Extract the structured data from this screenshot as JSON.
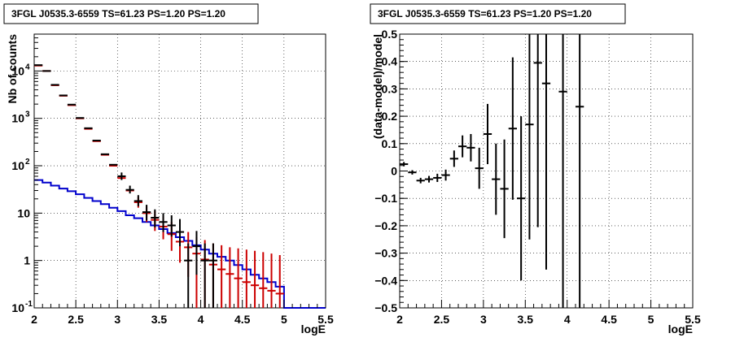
{
  "chart_data": [
    {
      "type": "line",
      "title": "3FGL J0535.3-6559 TS=61.23 PS=1.20 PS=1.20",
      "xlabel": "logE",
      "ylabel": "Nb of counts",
      "xlim": [
        2,
        5.5
      ],
      "ylim": [
        0.1,
        60000
      ],
      "log_y": true,
      "grid": true,
      "x_ticks": [
        "2",
        "2.5",
        "3",
        "3.5",
        "4",
        "4.5",
        "5",
        "5.5"
      ],
      "y_ticks": [
        {
          "value": 0.1,
          "label": "10",
          "exp": "-1"
        },
        {
          "value": 1,
          "label": "1",
          "exp": ""
        },
        {
          "value": 10,
          "label": "10",
          "exp": ""
        },
        {
          "value": 100,
          "label": "10",
          "exp": "2"
        },
        {
          "value": 1000,
          "label": "10",
          "exp": "3"
        },
        {
          "value": 10000,
          "label": "10",
          "exp": "4"
        }
      ],
      "bin_width": 0.1,
      "series": [
        {
          "color": "#0000cc",
          "style": "step",
          "x": [
            2.05,
            2.15,
            2.25,
            2.35,
            2.45,
            2.55,
            2.65,
            2.75,
            2.85,
            2.95,
            3.05,
            3.15,
            3.25,
            3.35,
            3.45,
            3.55,
            3.65,
            3.75,
            3.85,
            3.95,
            4.05,
            4.15,
            4.25,
            4.35,
            4.45,
            4.55,
            4.65,
            4.75,
            4.85,
            4.95,
            5.05,
            5.15,
            5.25,
            5.35,
            5.45
          ],
          "y": [
            50,
            44,
            38,
            33,
            29,
            25,
            21,
            18,
            15.5,
            13,
            11,
            9,
            7.8,
            6.5,
            5.5,
            4.6,
            3.8,
            3.1,
            2.6,
            2.1,
            1.7,
            1.4,
            1.2,
            1.0,
            0.8,
            0.65,
            0.5,
            0.42,
            0.35,
            0.28,
            0.1,
            0.1,
            0.1,
            0.1,
            0.1
          ]
        },
        {
          "color": "#cc0000",
          "style": "errorbar",
          "x": [
            2.05,
            2.15,
            2.25,
            2.35,
            2.45,
            2.55,
            2.65,
            2.75,
            2.85,
            2.95,
            3.05,
            3.15,
            3.25,
            3.35,
            3.45,
            3.55,
            3.65,
            3.75,
            3.85,
            3.95,
            4.05,
            4.15,
            4.25,
            4.35,
            4.45,
            4.55,
            4.65,
            4.75,
            4.85,
            4.95
          ],
          "y": [
            13000,
            10000,
            5000,
            3000,
            1900,
            1000,
            600,
            330,
            170,
            100,
            55,
            30,
            17,
            10,
            7.2,
            5.2,
            3.6,
            2.5,
            1.9,
            1.4,
            1.05,
            0.82,
            0.65,
            0.52,
            0.42,
            0.35,
            0.3,
            0.26,
            0.23,
            0.2
          ],
          "y_low": [
            null,
            null,
            null,
            null,
            null,
            null,
            null,
            null,
            null,
            null,
            null,
            null,
            13,
            6.5,
            4.2,
            2.8,
            1.6,
            0.9,
            0.45,
            0.1,
            0.1,
            0.1,
            0.1,
            0.1,
            0.1,
            0.1,
            0.1,
            0.1,
            0.1,
            0.1
          ],
          "y_high": [
            null,
            null,
            null,
            null,
            null,
            null,
            null,
            null,
            null,
            null,
            null,
            null,
            22,
            14,
            11,
            8.5,
            6.5,
            5,
            4,
            3.1,
            2.7,
            2.3,
            2.1,
            1.9,
            1.8,
            1.7,
            1.6,
            1.5,
            1.4,
            1.3
          ]
        },
        {
          "color": "#000000",
          "style": "errorbar",
          "x": [
            2.05,
            2.15,
            2.25,
            2.35,
            2.45,
            2.55,
            2.65,
            2.75,
            2.85,
            2.95,
            3.05,
            3.15,
            3.25,
            3.35,
            3.45,
            3.55,
            3.65,
            3.75,
            3.85,
            3.95,
            4.05,
            4.15
          ],
          "y": [
            13300,
            10000,
            5100,
            3050,
            1950,
            1020,
            620,
            340,
            175,
            105,
            60,
            31,
            18,
            10.5,
            8,
            6.5,
            5.5,
            4,
            1,
            2,
            1,
            1
          ],
          "y_low": [
            null,
            null,
            null,
            null,
            null,
            null,
            null,
            null,
            null,
            null,
            50,
            26,
            14,
            7,
            5,
            4,
            3.2,
            2,
            0.1,
            0.5,
            0.1,
            0.1
          ],
          "y_high": [
            null,
            null,
            null,
            null,
            null,
            null,
            null,
            null,
            null,
            null,
            72,
            38,
            24,
            15,
            12,
            10,
            9,
            7.5,
            2.3,
            4.2,
            2.3,
            2.3
          ]
        }
      ]
    },
    {
      "type": "scatter",
      "title": "3FGL J0535.3-6559 TS=61.23 PS=1.20 PS=1.20",
      "xlabel": "logE",
      "ylabel": "(data-model)/model",
      "xlim": [
        2,
        5.5
      ],
      "ylim": [
        -0.5,
        0.5
      ],
      "grid": true,
      "x_ticks": [
        "2",
        "2.5",
        "3",
        "3.5",
        "4",
        "4.5",
        "5",
        "5.5"
      ],
      "y_ticks": [
        "−0.5",
        "−0.4",
        "−0.3",
        "−0.2",
        "−0.1",
        "0",
        "0.1",
        "0.2",
        "0.3",
        "0.4",
        "0.5"
      ],
      "bin_width": 0.1,
      "points": [
        {
          "x": 2.05,
          "y": 0.025,
          "err": 0.008
        },
        {
          "x": 2.15,
          "y": -0.005,
          "err": 0.008
        },
        {
          "x": 2.25,
          "y": -0.035,
          "err": 0.01
        },
        {
          "x": 2.35,
          "y": -0.03,
          "err": 0.012
        },
        {
          "x": 2.45,
          "y": -0.025,
          "err": 0.015
        },
        {
          "x": 2.55,
          "y": -0.015,
          "err": 0.02
        },
        {
          "x": 2.65,
          "y": 0.045,
          "err": 0.03
        },
        {
          "x": 2.75,
          "y": 0.09,
          "err": 0.04
        },
        {
          "x": 2.85,
          "y": 0.085,
          "err": 0.05
        },
        {
          "x": 2.95,
          "y": 0.01,
          "err": 0.075
        },
        {
          "x": 3.05,
          "y": 0.135,
          "err": 0.11
        },
        {
          "x": 3.15,
          "y": -0.03,
          "err": 0.13
        },
        {
          "x": 3.25,
          "y": -0.065,
          "err": 0.18
        },
        {
          "x": 3.35,
          "y": 0.155,
          "err": 0.26
        },
        {
          "x": 3.45,
          "y": -0.1,
          "err": 0.3
        },
        {
          "x": 3.55,
          "y": 0.17,
          "err": 0.42
        },
        {
          "x": 3.65,
          "y": 0.395,
          "err": 0.6
        },
        {
          "x": 3.75,
          "y": 0.32,
          "err": 0.68
        },
        {
          "x": 3.95,
          "y": 0.29,
          "err": 0.85
        },
        {
          "x": 4.15,
          "y": 0.235,
          "err": 0.85
        }
      ]
    }
  ]
}
